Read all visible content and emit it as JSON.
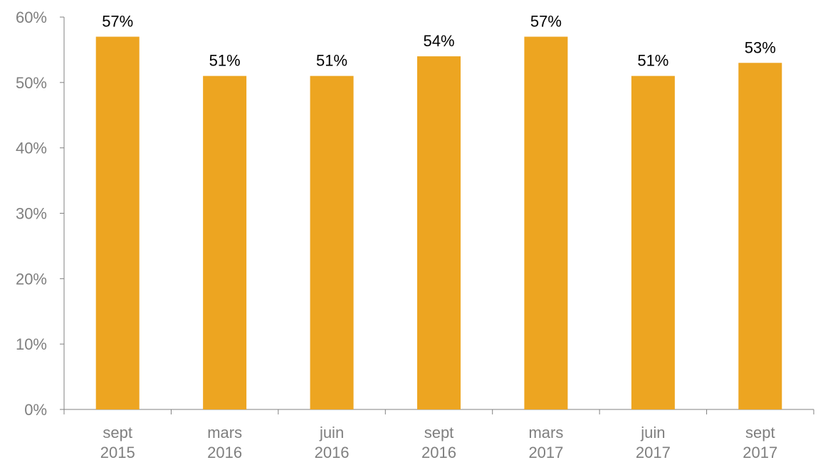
{
  "chart_data": {
    "type": "bar",
    "categories": [
      [
        "sept",
        "2015"
      ],
      [
        "mars",
        "2016"
      ],
      [
        "juin",
        "2016"
      ],
      [
        "sept",
        "2016"
      ],
      [
        "mars",
        "2017"
      ],
      [
        "juin",
        "2017"
      ],
      [
        "sept",
        "2017"
      ]
    ],
    "values": [
      57,
      51,
      51,
      54,
      57,
      51,
      53
    ],
    "data_labels": [
      "57%",
      "51%",
      "51%",
      "54%",
      "57%",
      "51%",
      "53%"
    ],
    "y_ticks": [
      0,
      10,
      20,
      30,
      40,
      50,
      60
    ],
    "y_tick_labels": [
      "0%",
      "10%",
      "20%",
      "30%",
      "40%",
      "50%",
      "60%"
    ],
    "ylim": [
      0,
      60
    ],
    "title": "",
    "xlabel": "",
    "ylabel": "",
    "grid": false,
    "legend": "none",
    "bar_color": "#EDA521",
    "axis_color": "#808080"
  }
}
